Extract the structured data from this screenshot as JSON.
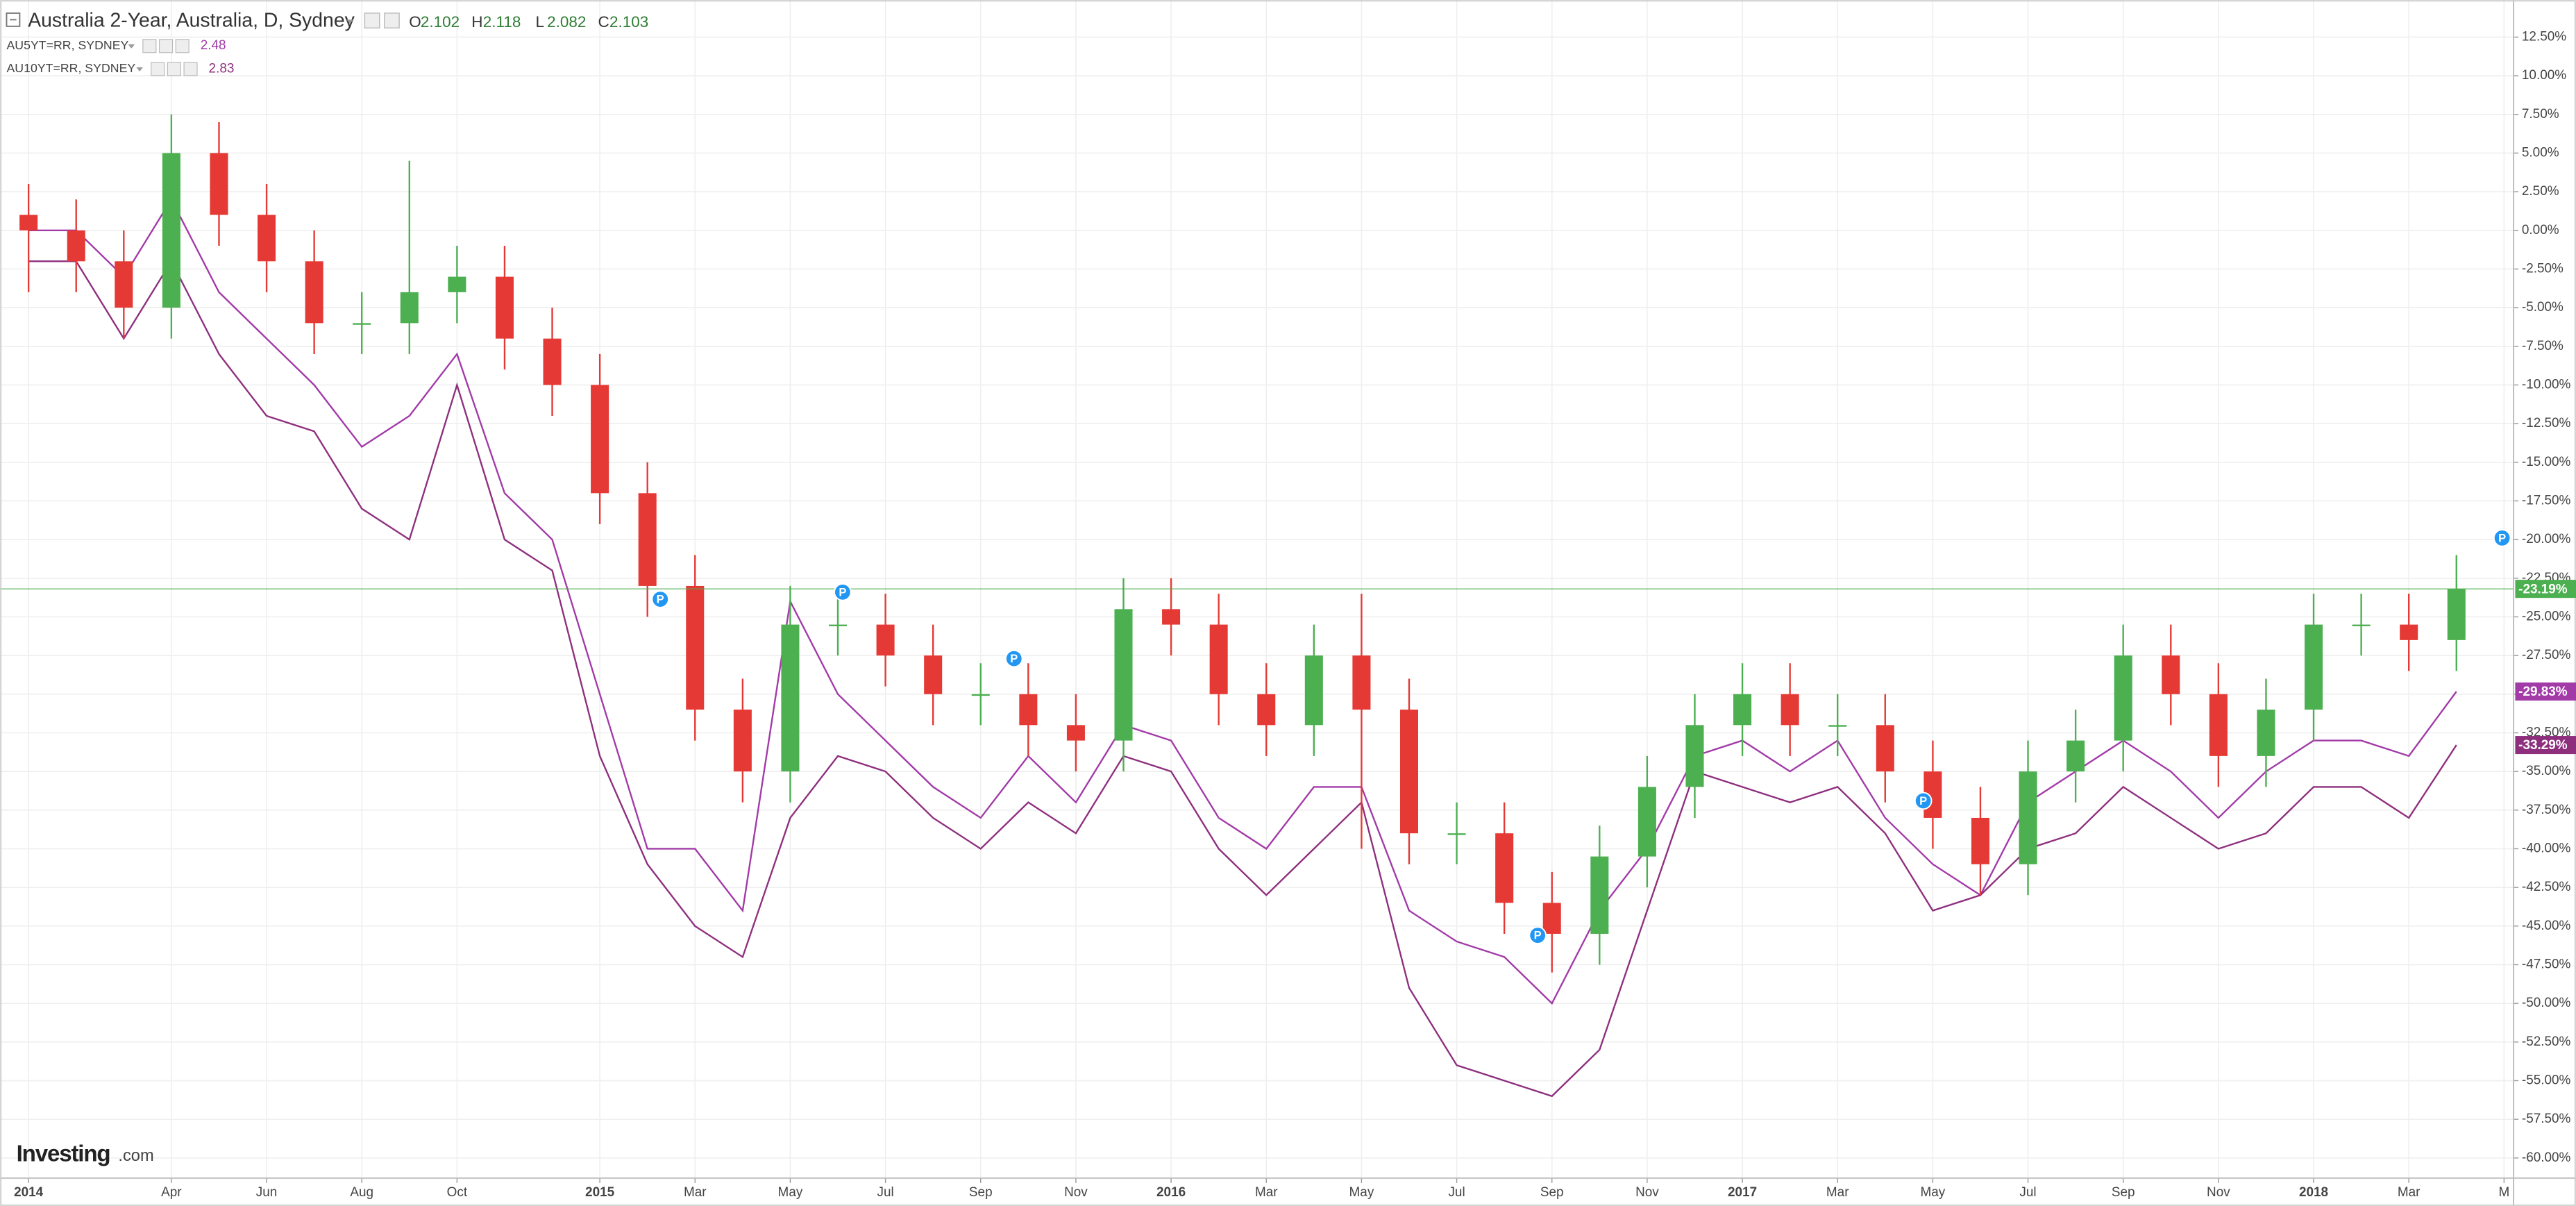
{
  "chart_data": {
    "type": "candlestick",
    "title": "Australia 2-Year, Australia, D, Sydney",
    "ohlc": [
      {
        "label": "O",
        "value": 2.102
      },
      {
        "label": "H",
        "value": 2.118
      },
      {
        "label": "L",
        "value": 2.082
      },
      {
        "label": "C",
        "value": 2.103
      }
    ],
    "up_color": "#4caf50",
    "down_color": "#e53935",
    "x": [
      0,
      1,
      2,
      3,
      4,
      5,
      6,
      7,
      8,
      9,
      10,
      11,
      12,
      13,
      14,
      15,
      16,
      17,
      18,
      19,
      20,
      21,
      22,
      23,
      24,
      25,
      26,
      27,
      28,
      29,
      30,
      31,
      32,
      33,
      34,
      35,
      36,
      37,
      38,
      39,
      40,
      41,
      42,
      43,
      44,
      45,
      46,
      47,
      48,
      49,
      50,
      51
    ],
    "open": [
      1,
      0,
      -2,
      -5,
      5,
      1,
      -2,
      -6,
      -6,
      -4,
      -3,
      -7,
      -10,
      -17,
      -23,
      -31,
      -35,
      -25.5,
      -25.5,
      -27.5,
      -30,
      -30,
      -32,
      -33,
      -24.5,
      -25.5,
      -30,
      -32,
      -27.5,
      -31,
      -39,
      -39,
      -43.5,
      -45.5,
      -40.5,
      -36,
      -32,
      -30,
      -32,
      -32,
      -35,
      -38,
      -41,
      -35,
      -33,
      -27.5,
      -30,
      -34,
      -31,
      -25.5,
      -25.5,
      -26.5
    ],
    "high": [
      3,
      2,
      0,
      7.5,
      7,
      3,
      0,
      -4,
      4.5,
      -1,
      -1,
      -5,
      -8,
      -15,
      -21,
      -29,
      -23,
      -23.5,
      -23.5,
      -25.5,
      -28,
      -28,
      -30,
      -22.5,
      -22.5,
      -23.5,
      -28,
      -25.5,
      -23.5,
      -29,
      -37,
      -37,
      -41.5,
      -38.5,
      -34,
      -30,
      -28,
      -28,
      -30,
      -30,
      -33,
      -36,
      -33,
      -31,
      -25.5,
      -25.5,
      -28,
      -29,
      -23.5,
      -23.5,
      -23.5,
      -21
    ],
    "low": [
      -4,
      -4,
      -7,
      -7,
      -1,
      -4,
      -8,
      -8,
      -8,
      -6,
      -9,
      -12,
      -19,
      -25,
      -33,
      -37,
      -37,
      -27.5,
      -29.5,
      -32,
      -32,
      -34,
      -35,
      -35,
      -27.5,
      -32,
      -34,
      -34,
      -40,
      -41,
      -41,
      -45.5,
      -48,
      -47.5,
      -42.5,
      -38,
      -34,
      -34,
      -34,
      -37,
      -40,
      -43,
      -43,
      -37,
      -35,
      -32,
      -36,
      -36,
      -33,
      -27.5,
      -28.5,
      -28.5
    ],
    "close": [
      0,
      -2,
      -5,
      5,
      1,
      -2,
      -6,
      -6,
      -4,
      -3,
      -7,
      -10,
      -17,
      -23,
      -31,
      -35,
      -25.5,
      -25.5,
      -27.5,
      -30,
      -30,
      -32,
      -33,
      -24.5,
      -25.5,
      -30,
      -32,
      -27.5,
      -31,
      -39,
      -39,
      -43.5,
      -45.5,
      -40.5,
      -36,
      -32,
      -30,
      -32,
      -32,
      -35,
      -38,
      -41,
      -35,
      -33,
      -27.5,
      -30,
      -34,
      -31,
      -25.5,
      -25.5,
      -26.5,
      -23.19
    ],
    "close_label": "-23.19%",
    "series": [
      {
        "name": "AU5YT=RR, SYDNEY",
        "legend_value": 2.48,
        "color": "#a23aa8",
        "last_label": "-29.83%",
        "values": [
          0,
          0,
          -3,
          2,
          -4,
          -7,
          -10,
          -14,
          -12,
          -8,
          -17,
          -20,
          -30,
          -40,
          -40,
          -44,
          -24,
          -30,
          -33,
          -36,
          -38,
          -34,
          -37,
          -32,
          -33,
          -38,
          -40,
          -36,
          -36,
          -44,
          -46,
          -47,
          -50,
          -44,
          -40,
          -34,
          -33,
          -35,
          -33,
          -38,
          -41,
          -43,
          -37,
          -35,
          -33,
          -35,
          -38,
          -35,
          -33,
          -33,
          -34,
          -29.83
        ]
      },
      {
        "name": "AU10YT=RR, SYDNEY",
        "legend_value": 2.83,
        "color": "#8e2f7e",
        "last_label": "-33.29%",
        "values": [
          -2,
          -2,
          -7,
          -2,
          -8,
          -12,
          -13,
          -18,
          -20,
          -10,
          -20,
          -22,
          -34,
          -41,
          -45,
          -47,
          -38,
          -34,
          -35,
          -38,
          -40,
          -37,
          -39,
          -34,
          -35,
          -40,
          -43,
          -40,
          -37,
          -49,
          -54,
          -55,
          -56,
          -53,
          -44,
          -35,
          -36,
          -37,
          -36,
          -39,
          -44,
          -43,
          -40,
          -39,
          -36,
          -38,
          -40,
          -39,
          -36,
          -36,
          -38,
          -33.29
        ]
      }
    ],
    "markers": [
      {
        "label": "P",
        "x": 13.27,
        "y": -23.86
      },
      {
        "label": "P",
        "x": 17.1,
        "y": -23.4
      },
      {
        "label": "P",
        "x": 20.7,
        "y": -27.7
      },
      {
        "label": "P",
        "x": 31.7,
        "y": -45.6
      },
      {
        "label": "P",
        "x": 39.8,
        "y": -36.9
      },
      {
        "label": "P",
        "x": 51.96,
        "y": -19.9
      }
    ],
    "marker_color": "#2196f3",
    "xlim": [
      -0.6,
      52.2
    ],
    "xticks": [
      {
        "value": 0,
        "label": "2014"
      },
      {
        "value": 3,
        "label": "Apr"
      },
      {
        "value": 5,
        "label": "Jun"
      },
      {
        "value": 7,
        "label": "Aug"
      },
      {
        "value": 9,
        "label": "Oct"
      },
      {
        "value": 12,
        "label": "2015"
      },
      {
        "value": 14,
        "label": "Mar"
      },
      {
        "value": 16,
        "label": "May"
      },
      {
        "value": 18,
        "label": "Jul"
      },
      {
        "value": 20,
        "label": "Sep"
      },
      {
        "value": 22,
        "label": "Nov"
      },
      {
        "value": 24,
        "label": "2016"
      },
      {
        "value": 26,
        "label": "Mar"
      },
      {
        "value": 28,
        "label": "May"
      },
      {
        "value": 30,
        "label": "Jul"
      },
      {
        "value": 32,
        "label": "Sep"
      },
      {
        "value": 34,
        "label": "Nov"
      },
      {
        "value": 36,
        "label": "2017"
      },
      {
        "value": 38,
        "label": "Mar"
      },
      {
        "value": 40,
        "label": "May"
      },
      {
        "value": 42,
        "label": "Jul"
      },
      {
        "value": 44,
        "label": "Sep"
      },
      {
        "value": 46,
        "label": "Nov"
      },
      {
        "value": 48,
        "label": "2018"
      },
      {
        "value": 50,
        "label": "Mar"
      },
      {
        "value": 52,
        "label": "M"
      }
    ],
    "ylim": [
      -61.3,
      14.9
    ],
    "yticks": [
      {
        "value": 12.5,
        "label": "12.50%"
      },
      {
        "value": 10,
        "label": "10.00%"
      },
      {
        "value": 7.5,
        "label": "7.50%"
      },
      {
        "value": 5,
        "label": "5.00%"
      },
      {
        "value": 2.5,
        "label": "2.50%"
      },
      {
        "value": 0,
        "label": "0.00%"
      },
      {
        "value": -2.5,
        "label": "-2.50%"
      },
      {
        "value": -5,
        "label": "-5.00%"
      },
      {
        "value": -7.5,
        "label": "-7.50%"
      },
      {
        "value": -10,
        "label": "-10.00%"
      },
      {
        "value": -12.5,
        "label": "-12.50%"
      },
      {
        "value": -15,
        "label": "-15.00%"
      },
      {
        "value": -17.5,
        "label": "-17.50%"
      },
      {
        "value": -20,
        "label": "-20.00%"
      },
      {
        "value": -22.5,
        "label": "-22.50%"
      },
      {
        "value": -25,
        "label": "-25.00%"
      },
      {
        "value": -27.5,
        "label": "-27.50%"
      },
      {
        "value": -30,
        "label": "-30.00%"
      },
      {
        "value": -32.5,
        "label": "-32.50%"
      },
      {
        "value": -35,
        "label": "-35.00%"
      },
      {
        "value": -37.5,
        "label": "-37.50%"
      },
      {
        "value": -40,
        "label": "-40.00%"
      },
      {
        "value": -42.5,
        "label": "-42.50%"
      },
      {
        "value": -45,
        "label": "-45.00%"
      },
      {
        "value": -47.5,
        "label": "-47.50%"
      },
      {
        "value": -50,
        "label": "-50.00%"
      },
      {
        "value": -52.5,
        "label": "-52.50%"
      },
      {
        "value": -55,
        "label": "-55.00%"
      },
      {
        "value": -57.5,
        "label": "-57.50%"
      },
      {
        "value": -60,
        "label": "-60.00%"
      }
    ],
    "grid": true,
    "watermark": {
      "brand": "Investing",
      "suffix": ".com"
    }
  }
}
